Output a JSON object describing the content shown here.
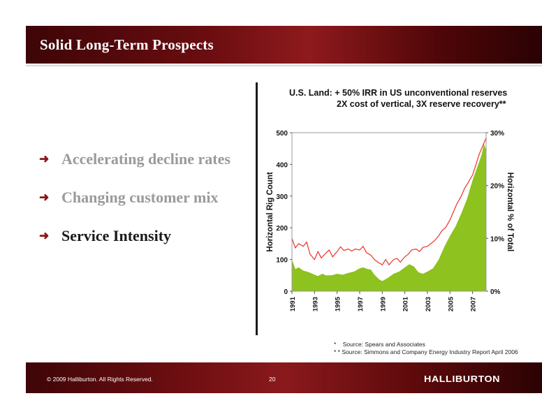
{
  "header": {
    "title": "Solid Long-Term Prospects"
  },
  "bullets": [
    {
      "text": "Accelerating decline rates",
      "color": "#9a9a9a"
    },
    {
      "text": "Changing customer mix",
      "color": "#9a9a9a"
    },
    {
      "text": "Service Intensity",
      "color": "#1a1a1a"
    }
  ],
  "bullet_icon": "arrow-right-icon",
  "chart_data": {
    "type": "area",
    "title": "U.S. Land: + 50% IRR in US unconventional reserves",
    "subtitle": "2X cost of vertical, 3X reserve recovery**",
    "ylabel": "Horizontal Rig Count",
    "y2label": "Horizontal % of Total",
    "ylim": [
      0,
      500
    ],
    "y2lim": [
      0,
      30
    ],
    "yticks": [
      "0",
      "100",
      "200",
      "300",
      "400",
      "500"
    ],
    "y2ticks": [
      "0%",
      "10%",
      "20%",
      "30%"
    ],
    "xticks": [
      "1991",
      "1993",
      "1995",
      "1997",
      "1999",
      "2001",
      "2003",
      "2005",
      "2007"
    ],
    "xlim": [
      1991,
      2008.2
    ],
    "grid": false,
    "series": [
      {
        "axis": "left",
        "color": "#8dc21f",
        "x": [
          1991.0,
          1991.3,
          1991.6,
          1992.0,
          1992.5,
          1993.0,
          1993.3,
          1993.7,
          1994.0,
          1994.5,
          1995.0,
          1995.5,
          1996.0,
          1996.5,
          1997.0,
          1997.3,
          1997.7,
          1998.0,
          1998.3,
          1998.7,
          1999.0,
          1999.5,
          2000.0,
          2000.5,
          2001.0,
          2001.4,
          2001.8,
          2002.2,
          2002.6,
          2003.0,
          2003.5,
          2004.0,
          2004.5,
          2005.0,
          2005.5,
          2006.0,
          2006.5,
          2007.0,
          2007.5,
          2007.8,
          2008.0,
          2008.2
        ],
        "values": [
          100,
          70,
          75,
          65,
          60,
          52,
          48,
          55,
          50,
          50,
          55,
          52,
          58,
          62,
          72,
          75,
          70,
          68,
          52,
          38,
          32,
          42,
          55,
          62,
          75,
          85,
          78,
          60,
          55,
          62,
          72,
          100,
          140,
          175,
          205,
          245,
          290,
          350,
          400,
          430,
          465,
          445
        ]
      },
      {
        "axis": "right",
        "color": "#e8342a",
        "x": [
          1991.0,
          1991.3,
          1991.6,
          1992.0,
          1992.3,
          1992.6,
          1993.0,
          1993.3,
          1993.6,
          1994.0,
          1994.3,
          1994.6,
          1995.0,
          1995.3,
          1995.6,
          1996.0,
          1996.3,
          1996.6,
          1997.0,
          1997.3,
          1997.6,
          1998.0,
          1998.3,
          1998.6,
          1999.0,
          1999.3,
          1999.6,
          2000.0,
          2000.3,
          2000.6,
          2001.0,
          2001.3,
          2001.6,
          2002.0,
          2002.3,
          2002.6,
          2003.0,
          2003.3,
          2003.6,
          2004.0,
          2004.3,
          2004.6,
          2005.0,
          2005.3,
          2005.6,
          2006.0,
          2006.3,
          2006.6,
          2007.0,
          2007.3,
          2007.6,
          2008.0,
          2008.2
        ],
        "values": [
          10.0,
          8.2,
          9.0,
          8.5,
          9.3,
          7.0,
          6.0,
          7.5,
          6.3,
          7.2,
          7.8,
          6.5,
          7.5,
          8.4,
          7.7,
          8.0,
          7.6,
          8.0,
          7.8,
          8.5,
          7.3,
          6.8,
          6.0,
          5.5,
          5.0,
          6.0,
          5.0,
          6.0,
          6.2,
          5.5,
          6.5,
          7.0,
          7.8,
          8.0,
          7.5,
          8.3,
          8.5,
          9.0,
          9.5,
          10.5,
          11.5,
          12.0,
          13.5,
          15.0,
          16.5,
          18.0,
          19.5,
          20.5,
          22.0,
          24.0,
          26.0,
          28.0,
          29.0
        ]
      }
    ]
  },
  "footnotes": [
    {
      "mark": "*",
      "text": "Source:  Spears and Associates"
    },
    {
      "mark": "* *",
      "text": "Source: Simmons and Company Energy Industry Report April 2006"
    }
  ],
  "footer": {
    "copyright": "© 2009 Halliburton. All Rights Reserved.",
    "page": "20",
    "logo": "HALLIBURTON"
  }
}
